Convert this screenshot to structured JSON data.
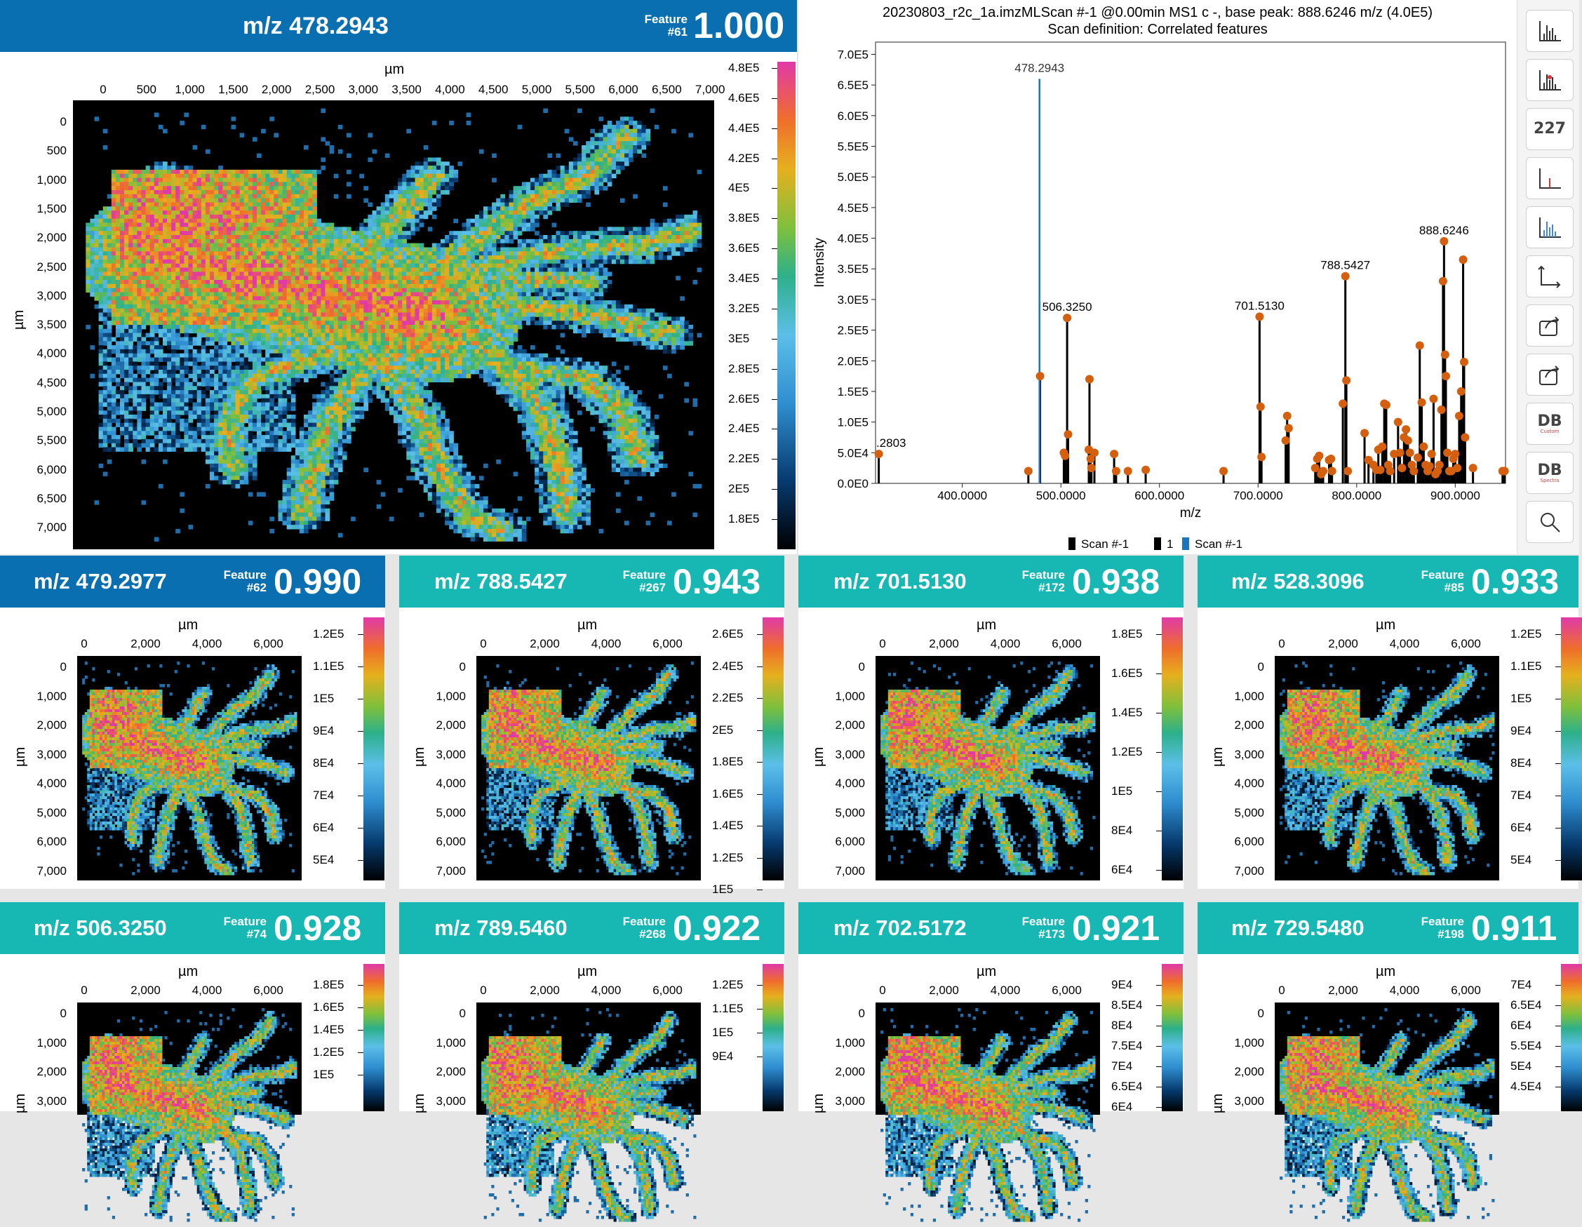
{
  "colors": {
    "header_primary": "#0a6fb0",
    "header_secondary": "#17b8b4",
    "spectrum_black": "#000000",
    "spectrum_blue": "#1b75bb",
    "marker": "#d35f0f"
  },
  "main_panel": {
    "mz": "m/z 478.2943",
    "feature_word": "Feature",
    "feature_no": "#61",
    "score": "1.000",
    "x_unit": "µm",
    "y_unit": "µm",
    "x_ticks": [
      "0",
      "500",
      "1,000",
      "1,500",
      "2,000",
      "2,500",
      "3,000",
      "3,500",
      "4,000",
      "4,500",
      "5,000",
      "5,500",
      "6,000",
      "6,500",
      "7,000"
    ],
    "y_ticks": [
      "0",
      "500",
      "1,000",
      "1,500",
      "2,000",
      "2,500",
      "3,000",
      "3,500",
      "4,000",
      "4,500",
      "5,000",
      "5,500",
      "6,000",
      "6,500",
      "7,000"
    ],
    "cbar_ticks": [
      "4.8E5",
      "4.6E5",
      "4.4E5",
      "4.2E5",
      "4E5",
      "3.8E5",
      "3.6E5",
      "3.4E5",
      "3.2E5",
      "3E5",
      "2.8E5",
      "2.6E5",
      "2.4E5",
      "2.2E5",
      "2E5",
      "1.8E5"
    ]
  },
  "panels": [
    {
      "mz": "m/z 479.2977",
      "feature_word": "Feature",
      "feature_no": "#62",
      "score": "0.990",
      "header": "primary",
      "cbar_ticks": [
        "1.2E5",
        "1.1E5",
        "1E5",
        "9E4",
        "8E4",
        "7E4",
        "6E4",
        "5E4"
      ]
    },
    {
      "mz": "m/z 788.5427",
      "feature_word": "Feature",
      "feature_no": "#267",
      "score": "0.943",
      "header": "secondary",
      "cbar_ticks": [
        "2.6E5",
        "2.4E5",
        "2.2E5",
        "2E5",
        "1.8E5",
        "1.6E5",
        "1.4E5",
        "1.2E5",
        "1E5"
      ]
    },
    {
      "mz": "m/z 701.5130",
      "feature_word": "Feature",
      "feature_no": "#172",
      "score": "0.938",
      "header": "secondary",
      "cbar_ticks": [
        "1.8E5",
        "1.6E5",
        "1.4E5",
        "1.2E5",
        "1E5",
        "8E4",
        "6E4"
      ]
    },
    {
      "mz": "m/z 528.3096",
      "feature_word": "Feature",
      "feature_no": "#85",
      "score": "0.933",
      "header": "secondary",
      "cbar_ticks": [
        "1.2E5",
        "1.1E5",
        "1E5",
        "9E4",
        "8E4",
        "7E4",
        "6E4",
        "5E4"
      ]
    },
    {
      "mz": "m/z 506.3250",
      "feature_word": "Feature",
      "feature_no": "#74",
      "score": "0.928",
      "header": "secondary",
      "cbar_ticks": [
        "1.8E5",
        "1.6E5",
        "1.4E5",
        "1.2E5",
        "1E5"
      ]
    },
    {
      "mz": "m/z 789.5460",
      "feature_word": "Feature",
      "feature_no": "#268",
      "score": "0.922",
      "header": "secondary",
      "cbar_ticks": [
        "1.2E5",
        "1.1E5",
        "1E5",
        "9E4"
      ]
    },
    {
      "mz": "m/z 702.5172",
      "feature_word": "Feature",
      "feature_no": "#173",
      "score": "0.921",
      "header": "secondary",
      "cbar_ticks": [
        "9E4",
        "8.5E4",
        "8E4",
        "7.5E4",
        "7E4",
        "6.5E4",
        "6E4"
      ]
    },
    {
      "mz": "m/z 729.5480",
      "feature_word": "Feature",
      "feature_no": "#198",
      "score": "0.911",
      "header": "secondary",
      "cbar_ticks": [
        "7E4",
        "6.5E4",
        "6E4",
        "5.5E4",
        "5E4",
        "4.5E4"
      ]
    }
  ],
  "small_axes": {
    "unit": "µm",
    "x_ticks": [
      "0",
      "2,000",
      "4,000",
      "6,000"
    ],
    "y_ticks": [
      "0",
      "1,000",
      "2,000",
      "3,000",
      "4,000",
      "5,000",
      "6,000",
      "7,000"
    ]
  },
  "chart_data": {
    "type": "bar",
    "title": "20230803_r2c_1a.imzMLScan #-1 @0.00min MS1 c -, base peak: 888.6246 m/z (4.0E5)",
    "subtitle": "Scan definition: Correlated features",
    "xlabel": "m/z",
    "ylabel": "Intensity",
    "xlim": [
      312,
      951
    ],
    "ylim": [
      0,
      720000
    ],
    "x_ticks": [
      "400.0000",
      "500.0000",
      "600.0000",
      "700.0000",
      "800.0000",
      "900.0000"
    ],
    "y_ticks": [
      "0.0E0",
      "5.0E4",
      "1.0E5",
      "1.5E5",
      "2.0E5",
      "2.5E5",
      "3.0E5",
      "3.5E5",
      "4.0E5",
      "4.5E5",
      "5.0E5",
      "5.5E5",
      "6.0E5",
      "6.5E5",
      "7.0E5"
    ],
    "peak_labels": [
      {
        "text": ".2803",
        "x": 315,
        "y": 48000
      },
      {
        "text": "478.2943",
        "x": 478.29,
        "y": 660000
      },
      {
        "text": "506.3250",
        "x": 506.33,
        "y": 270000
      },
      {
        "text": "701.5130",
        "x": 701.51,
        "y": 272000
      },
      {
        "text": "788.5427",
        "x": 788.54,
        "y": 338000
      },
      {
        "text": "888.6246",
        "x": 888.62,
        "y": 395000
      }
    ],
    "series": [
      {
        "name": "Scan #-1",
        "color": "#1b75bb",
        "peaks": [
          [
            478.29,
            660000
          ]
        ]
      },
      {
        "name": "1",
        "color": "#000000",
        "peaks": [
          [
            315.28,
            48000
          ],
          [
            467,
            20000
          ],
          [
            478.9,
            175000
          ],
          [
            503,
            50000
          ],
          [
            504.3,
            45000
          ],
          [
            506.33,
            270000
          ],
          [
            507.3,
            80000
          ],
          [
            529,
            170000
          ],
          [
            528.31,
            55000
          ],
          [
            530.2,
            40000
          ],
          [
            531,
            25000
          ],
          [
            534,
            50000
          ],
          [
            554,
            48000
          ],
          [
            556,
            20000
          ],
          [
            568,
            20000
          ],
          [
            586,
            22000
          ],
          [
            665,
            20000
          ],
          [
            701.51,
            272000
          ],
          [
            702.5,
            125000
          ],
          [
            703.5,
            43000
          ],
          [
            728,
            70000
          ],
          [
            729.5,
            110000
          ],
          [
            731,
            90000
          ],
          [
            758,
            25000
          ],
          [
            760,
            40000
          ],
          [
            762,
            45000
          ],
          [
            764,
            15000
          ],
          [
            766,
            20000
          ],
          [
            772,
            38000
          ],
          [
            774,
            40000
          ],
          [
            775,
            20000
          ],
          [
            786,
            130000
          ],
          [
            788.54,
            338000
          ],
          [
            789.55,
            168000
          ],
          [
            791,
            20000
          ],
          [
            808,
            82000
          ],
          [
            812,
            38000
          ],
          [
            817,
            30000
          ],
          [
            820,
            22000
          ],
          [
            822,
            55000
          ],
          [
            824,
            22000
          ],
          [
            826,
            60000
          ],
          [
            828,
            130000
          ],
          [
            830,
            128000
          ],
          [
            832,
            30000
          ],
          [
            834,
            20000
          ],
          [
            838,
            48000
          ],
          [
            842,
            100000
          ],
          [
            844,
            50000
          ],
          [
            846,
            25000
          ],
          [
            848,
            75000
          ],
          [
            850,
            88000
          ],
          [
            852,
            70000
          ],
          [
            854,
            50000
          ],
          [
            856,
            30000
          ],
          [
            858,
            20000
          ],
          [
            862,
            42000
          ],
          [
            864,
            225000
          ],
          [
            866,
            132000
          ],
          [
            868,
            60000
          ],
          [
            870,
            30000
          ],
          [
            872,
            20000
          ],
          [
            874,
            28000
          ],
          [
            876,
            48000
          ],
          [
            878,
            138000
          ],
          [
            880,
            15000
          ],
          [
            882,
            20000
          ],
          [
            884,
            30000
          ],
          [
            886,
            120000
          ],
          [
            887.6,
            330000
          ],
          [
            888.62,
            395000
          ],
          [
            889.7,
            210000
          ],
          [
            890.5,
            175000
          ],
          [
            892,
            50000
          ],
          [
            894,
            20000
          ],
          [
            896,
            20000
          ],
          [
            898,
            40000
          ],
          [
            900,
            48000
          ],
          [
            902,
            25000
          ],
          [
            904,
            110000
          ],
          [
            906,
            150000
          ],
          [
            908,
            365000
          ],
          [
            909,
            198000
          ],
          [
            910,
            75000
          ],
          [
            918,
            25000
          ],
          [
            948,
            20000
          ],
          [
            950,
            20000
          ]
        ]
      }
    ],
    "legend": [
      {
        "name": "Scan #-1",
        "color": "#000000"
      },
      {
        "name": "1",
        "color": "#000000"
      },
      {
        "name": "Scan #-1",
        "color": "#1b75bb"
      }
    ]
  },
  "toolbar": [
    {
      "icon": "spectrum-bars-icon"
    },
    {
      "icon": "spectrum-markers-icon"
    },
    {
      "icon": "label-peaks-icon",
      "text": "227"
    },
    {
      "icon": "single-peak-icon"
    },
    {
      "icon": "color-spectrum-icon"
    },
    {
      "icon": "axes-icon"
    },
    {
      "icon": "export-icon"
    },
    {
      "icon": "export-alt-icon"
    },
    {
      "icon": "db-custom-icon",
      "text": "DB",
      "sub": "Custom"
    },
    {
      "icon": "db-spectra-icon",
      "text": "DB",
      "sub": "Spectra"
    },
    {
      "icon": "search-icon"
    }
  ]
}
